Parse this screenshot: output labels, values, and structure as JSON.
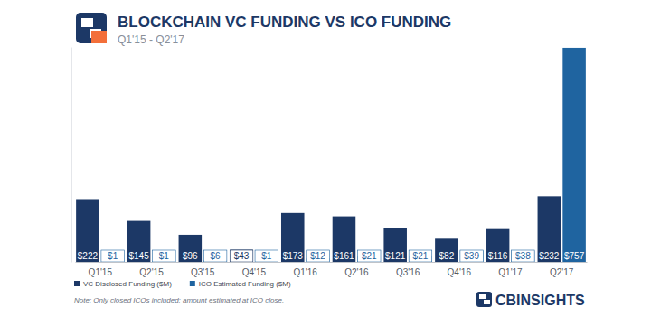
{
  "chart_data": {
    "type": "bar",
    "title": "BLOCKCHAIN VC FUNDING VS ICO FUNDING",
    "subtitle": "Q1'15 - Q2'17",
    "note": "Note: Only closed ICOs included; amount estimated at ICO close.",
    "source": "CBINSIGHTS",
    "categories": [
      "Q1'15",
      "Q2'15",
      "Q3'15",
      "Q4'15",
      "Q1'16",
      "Q2'16",
      "Q3'16",
      "Q4'16",
      "Q1'17",
      "Q2'17"
    ],
    "series": [
      {
        "name": "VC Disclosed Funding ($M)",
        "color": "#1c3866",
        "values": [
          222,
          145,
          96,
          43,
          173,
          161,
          121,
          82,
          116,
          232
        ],
        "value_labels": [
          "$222",
          "$145",
          "$96",
          "$43",
          "$173",
          "$161",
          "$121",
          "$82",
          "$116",
          "$232"
        ]
      },
      {
        "name": "ICO Estimated Funding ($M)",
        "color": "#1f64a0",
        "values": [
          1,
          1,
          6,
          1,
          12,
          21,
          21,
          39,
          38,
          757
        ],
        "value_labels": [
          "$1",
          "$1",
          "$6",
          "$1",
          "$12",
          "$21",
          "$21",
          "$39",
          "$38",
          "$757"
        ]
      }
    ],
    "ylim": [
      0,
      760
    ],
    "data_labels": true,
    "legend": "bottom-left",
    "grid": false,
    "tick_labels": "x"
  }
}
